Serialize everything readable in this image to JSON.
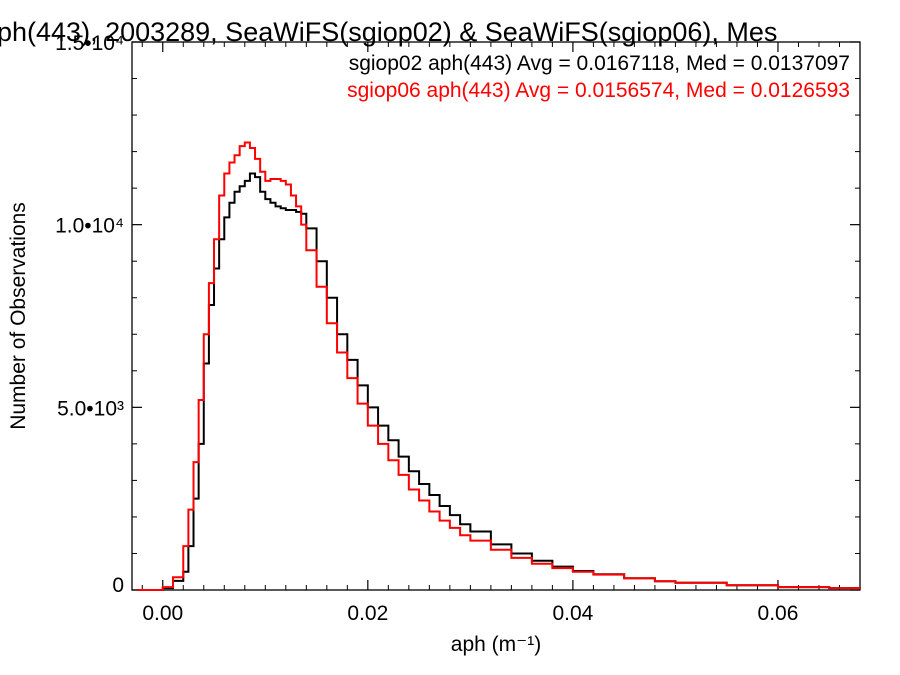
{
  "chart_data": {
    "type": "line",
    "title": "ph(443), 2003289, SeaWiFS(sgiop02) & SeaWiFS(sgiop06), Mes",
    "xlabel": "aph (m⁻¹)",
    "ylabel": "Number of Observations",
    "xlim": [
      -0.003,
      0.068
    ],
    "ylim": [
      0,
      15000
    ],
    "grid": false,
    "x_ticks": [
      "0.00",
      "0.02",
      "0.04",
      "0.06"
    ],
    "y_ticks": [
      "0",
      "5.0•10³",
      "1.0•10⁴",
      "1.5•10⁴"
    ],
    "legend_position": "top-right",
    "series": [
      {
        "name": "sgiop02 aph(443) Avg = 0.0167118, Med = 0.0137097",
        "color": "#000000",
        "x": [
          -0.0025,
          0.0,
          0.001,
          0.002,
          0.0025,
          0.003,
          0.0035,
          0.004,
          0.0045,
          0.005,
          0.0055,
          0.006,
          0.0065,
          0.007,
          0.0075,
          0.008,
          0.0085,
          0.009,
          0.0095,
          0.01,
          0.0105,
          0.011,
          0.0115,
          0.012,
          0.0125,
          0.013,
          0.0135,
          0.014,
          0.015,
          0.016,
          0.017,
          0.018,
          0.019,
          0.02,
          0.021,
          0.022,
          0.023,
          0.024,
          0.025,
          0.026,
          0.027,
          0.028,
          0.029,
          0.03,
          0.032,
          0.034,
          0.036,
          0.038,
          0.04,
          0.042,
          0.045,
          0.048,
          0.05,
          0.055,
          0.06,
          0.065,
          0.068
        ],
        "values": [
          0,
          50,
          250,
          500,
          1200,
          2500,
          4000,
          6200,
          7800,
          8800,
          9600,
          10200,
          10600,
          10900,
          11050,
          11200,
          11400,
          11300,
          10900,
          10700,
          10600,
          10500,
          10450,
          10400,
          10400,
          10350,
          10300,
          9900,
          9000,
          8000,
          7000,
          6300,
          5600,
          5000,
          4500,
          4100,
          3650,
          3250,
          2900,
          2600,
          2300,
          2050,
          1800,
          1600,
          1250,
          1000,
          800,
          640,
          520,
          430,
          320,
          240,
          200,
          130,
          80,
          50,
          40
        ]
      },
      {
        "name": "sgiop06 aph(443) Avg = 0.0156574, Med = 0.0126593",
        "color": "#ff0000",
        "x": [
          -0.0025,
          0.0,
          0.001,
          0.002,
          0.0025,
          0.003,
          0.0035,
          0.004,
          0.0045,
          0.005,
          0.0055,
          0.006,
          0.0065,
          0.007,
          0.0075,
          0.008,
          0.0085,
          0.009,
          0.0095,
          0.01,
          0.0105,
          0.011,
          0.0115,
          0.012,
          0.0125,
          0.013,
          0.0135,
          0.014,
          0.015,
          0.016,
          0.017,
          0.018,
          0.019,
          0.02,
          0.021,
          0.022,
          0.023,
          0.024,
          0.025,
          0.026,
          0.027,
          0.028,
          0.029,
          0.03,
          0.032,
          0.034,
          0.036,
          0.038,
          0.04,
          0.042,
          0.045,
          0.048,
          0.05,
          0.055,
          0.06,
          0.065,
          0.068
        ],
        "values": [
          0,
          80,
          350,
          1200,
          2200,
          3500,
          5200,
          7000,
          8400,
          9600,
          10800,
          11400,
          11700,
          11900,
          12150,
          12250,
          12100,
          11800,
          11450,
          11200,
          11250,
          11250,
          11200,
          11100,
          10800,
          10500,
          10000,
          9300,
          8300,
          7300,
          6500,
          5800,
          5100,
          4500,
          4000,
          3550,
          3150,
          2750,
          2450,
          2150,
          1900,
          1700,
          1500,
          1350,
          1100,
          880,
          720,
          600,
          500,
          420,
          320,
          240,
          200,
          130,
          80,
          50,
          40
        ]
      }
    ]
  }
}
